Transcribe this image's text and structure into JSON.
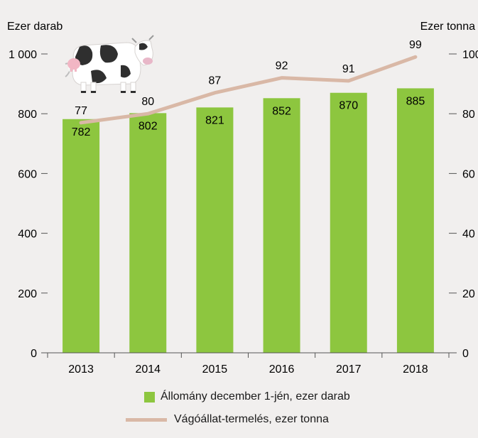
{
  "chart_data": {
    "type": "bar",
    "categories": [
      "2013",
      "2014",
      "2015",
      "2016",
      "2017",
      "2018"
    ],
    "series": [
      {
        "name": "Állomány december 1-jén, ezer darab",
        "type": "bar",
        "axis": "left",
        "values": [
          782,
          802,
          821,
          852,
          870,
          885
        ],
        "labels": [
          "782",
          "802",
          "821",
          "852",
          "870",
          "885"
        ],
        "color": "#8dc63f"
      },
      {
        "name": "Vágóállat-termelés, ezer tonna",
        "type": "line",
        "axis": "right",
        "values": [
          77,
          80,
          87,
          92,
          91,
          99
        ],
        "labels": [
          "77",
          "80",
          "87",
          "92",
          "91",
          "99"
        ],
        "color": "#d9b8a6"
      }
    ],
    "ylabel_left": "Ezer darab",
    "ylabel_right": "Ezer tonna",
    "ylim_left": [
      0,
      1000
    ],
    "ylim_right": [
      0,
      100
    ],
    "yticks_left": [
      "0",
      "200",
      "400",
      "600",
      "800",
      "1 000"
    ],
    "yticks_right": [
      "0",
      "20",
      "40",
      "60",
      "80",
      "100"
    ],
    "grid": false,
    "legend_position": "bottom",
    "icon": "cow-icon"
  }
}
